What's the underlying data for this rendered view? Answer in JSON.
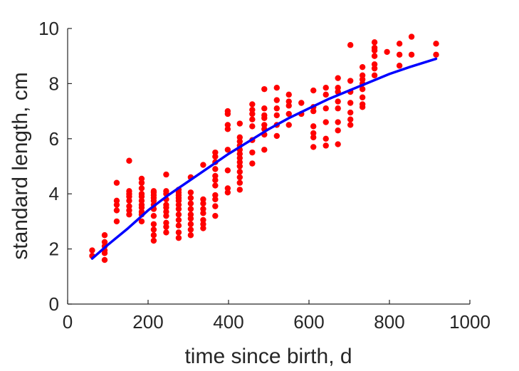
{
  "chart_data": {
    "type": "scatter",
    "title": "",
    "xlabel": "time since birth, d",
    "ylabel": "standard length, cm",
    "xlim": [
      0,
      1000
    ],
    "ylim": [
      0,
      10
    ],
    "xticks": [
      0,
      200,
      400,
      600,
      800,
      1000
    ],
    "yticks": [
      0,
      2,
      4,
      6,
      8,
      10
    ],
    "grid": false,
    "legend": "none",
    "colors": {
      "points": "#ff0000",
      "fit": "#0000ff",
      "axes": "#262626"
    },
    "series": [
      {
        "kind": "points",
        "x": [
          61,
          61,
          92,
          92,
          92,
          92,
          92,
          92,
          122,
          122,
          122,
          122,
          122,
          153,
          153,
          153,
          153,
          153,
          153,
          153,
          153,
          184,
          184,
          184,
          184,
          184,
          184,
          184,
          184,
          184,
          184,
          184,
          214,
          214,
          214,
          214,
          214,
          214,
          214,
          214,
          214,
          214,
          214,
          214,
          245,
          245,
          245,
          245,
          245,
          245,
          245,
          245,
          245,
          245,
          245,
          276,
          276,
          276,
          276,
          276,
          276,
          276,
          276,
          276,
          276,
          276,
          276,
          306,
          306,
          306,
          306,
          306,
          306,
          306,
          306,
          306,
          306,
          337,
          337,
          337,
          337,
          337,
          337,
          337,
          337,
          367,
          367,
          367,
          367,
          367,
          367,
          367,
          367,
          367,
          367,
          367,
          398,
          398,
          398,
          398,
          398,
          398,
          398,
          398,
          428,
          428,
          428,
          428,
          428,
          428,
          428,
          428,
          428,
          428,
          428,
          428,
          428,
          459,
          459,
          459,
          459,
          459,
          459,
          459,
          459,
          489,
          489,
          489,
          489,
          489,
          489,
          489,
          489,
          520,
          520,
          520,
          520,
          520,
          520,
          550,
          550,
          550,
          550,
          550,
          581,
          581,
          611,
          611,
          611,
          611,
          611,
          611,
          611,
          642,
          642,
          642,
          642,
          642,
          642,
          672,
          672,
          672,
          672,
          672,
          672,
          672,
          672,
          703,
          703,
          703,
          703,
          703,
          703,
          703,
          733,
          733,
          733,
          733,
          733,
          733,
          733,
          733,
          763,
          763,
          763,
          763,
          763,
          763,
          763,
          794,
          825,
          825,
          825,
          855,
          855,
          916,
          916
        ],
        "y": [
          1.75,
          1.95,
          1.6,
          1.85,
          1.95,
          2.1,
          2.25,
          2.5,
          3.0,
          3.4,
          3.6,
          3.75,
          4.4,
          3.25,
          3.4,
          3.55,
          3.75,
          3.9,
          4.0,
          4.1,
          5.2,
          3.0,
          3.25,
          3.35,
          3.5,
          3.6,
          3.75,
          3.9,
          4.0,
          4.2,
          4.4,
          4.55,
          2.3,
          2.5,
          2.7,
          2.9,
          3.2,
          3.45,
          3.6,
          3.75,
          3.85,
          3.95,
          4.05,
          4.1,
          2.6,
          2.8,
          2.95,
          3.2,
          3.35,
          3.5,
          3.6,
          3.8,
          4.0,
          4.1,
          4.7,
          2.4,
          2.6,
          2.85,
          3.05,
          3.25,
          3.45,
          3.6,
          3.75,
          3.85,
          3.95,
          4.05,
          4.15,
          2.5,
          2.7,
          2.9,
          3.1,
          3.25,
          3.45,
          3.65,
          3.85,
          4.05,
          4.6,
          2.75,
          2.9,
          3.05,
          3.3,
          3.45,
          3.65,
          3.8,
          5.05,
          3.2,
          3.55,
          3.8,
          3.95,
          4.3,
          4.5,
          4.65,
          4.9,
          5.15,
          5.35,
          5.5,
          4.05,
          4.2,
          4.85,
          5.6,
          6.35,
          6.5,
          6.9,
          7.0,
          4.15,
          4.4,
          4.6,
          4.8,
          5.0,
          5.15,
          5.3,
          5.45,
          5.6,
          5.75,
          5.9,
          6.05,
          6.55,
          5.1,
          5.5,
          5.95,
          6.45,
          6.7,
          6.9,
          7.05,
          7.25,
          5.6,
          6.15,
          6.35,
          6.5,
          6.75,
          6.85,
          7.1,
          7.8,
          6.1,
          6.5,
          6.85,
          7.1,
          7.4,
          7.85,
          6.5,
          6.9,
          7.2,
          7.35,
          7.6,
          6.9,
          7.3,
          5.7,
          6.05,
          6.2,
          6.45,
          7.0,
          7.15,
          7.75,
          5.75,
          6.0,
          6.6,
          7.1,
          7.6,
          7.85,
          5.8,
          6.3,
          6.6,
          7.1,
          7.35,
          7.7,
          7.85,
          8.2,
          6.5,
          6.7,
          6.95,
          7.3,
          7.7,
          8.1,
          9.4,
          7.15,
          7.25,
          7.5,
          7.8,
          8.0,
          8.15,
          8.3,
          8.6,
          8.3,
          8.55,
          8.7,
          9.0,
          9.2,
          9.3,
          9.5,
          9.15,
          8.65,
          9.05,
          9.45,
          9.05,
          9.7,
          9.05,
          9.45
        ]
      },
      {
        "kind": "fit-line",
        "x": [
          61,
          100,
          150,
          200,
          250,
          300,
          350,
          400,
          450,
          500,
          550,
          600,
          650,
          700,
          750,
          800,
          850,
          916
        ],
        "y": [
          1.65,
          2.15,
          2.75,
          3.4,
          3.95,
          4.45,
          4.95,
          5.45,
          5.9,
          6.35,
          6.75,
          7.1,
          7.45,
          7.75,
          8.05,
          8.35,
          8.6,
          8.9
        ]
      }
    ]
  }
}
